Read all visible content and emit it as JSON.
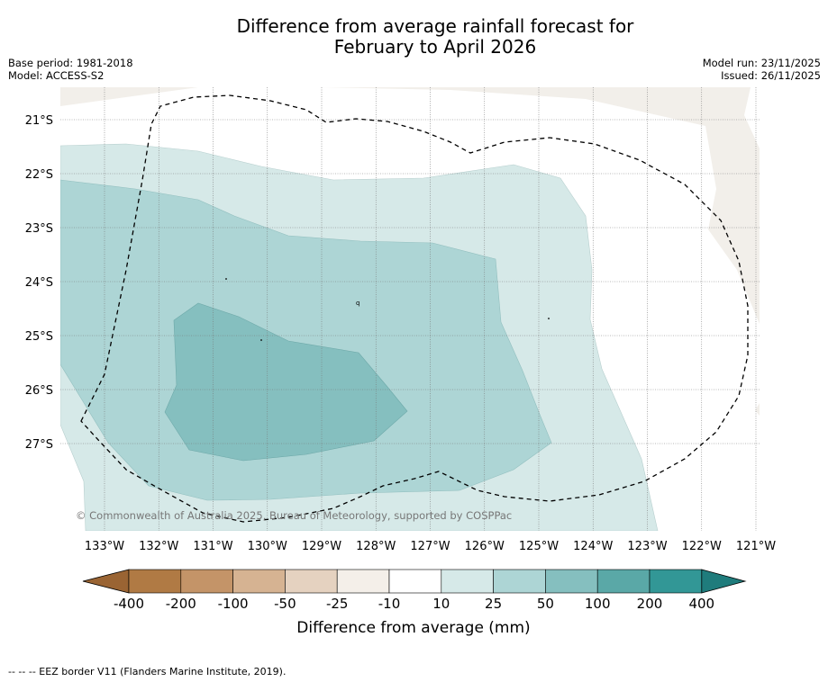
{
  "title_line1": "Difference from average rainfall forecast for",
  "title_line2": "February to April 2026",
  "base_period": "Base period: 1981-2018",
  "model": "Model: ACCESS-S2",
  "model_run": "Model run: 23/11/2025",
  "issued": "Issued: 26/11/2025",
  "copyright": "© Commonwealth of Australia 2025, Bureau of Meteorology, supported by COSPPac",
  "footnote": "--  --  -- EEZ border V11 (Flanders Marine Institute, 2019).",
  "map": {
    "lat_labels": [
      "21°S",
      "22°S",
      "23°S",
      "24°S",
      "25°S",
      "26°S",
      "27°S"
    ],
    "lon_labels": [
      "133°W",
      "132°W",
      "131°W",
      "130°W",
      "129°W",
      "128°W",
      "127°W",
      "126°W",
      "125°W",
      "124°W",
      "123°W",
      "122°W",
      "121°W"
    ]
  },
  "legend": {
    "title": "Difference from average (mm)",
    "tick_labels": [
      "-400",
      "-200",
      "-100",
      "-50",
      "-25",
      "-10",
      "10",
      "25",
      "50",
      "100",
      "200",
      "400"
    ],
    "colors": [
      "#9a6433",
      "#b07a44",
      "#c49468",
      "#d6b392",
      "#e5d2c0",
      "#f4efe9",
      "#ffffff",
      "#d6e9e8",
      "#add5d5",
      "#85bfbf",
      "#5aa8a7",
      "#329796",
      "#1f7c7c"
    ]
  }
}
